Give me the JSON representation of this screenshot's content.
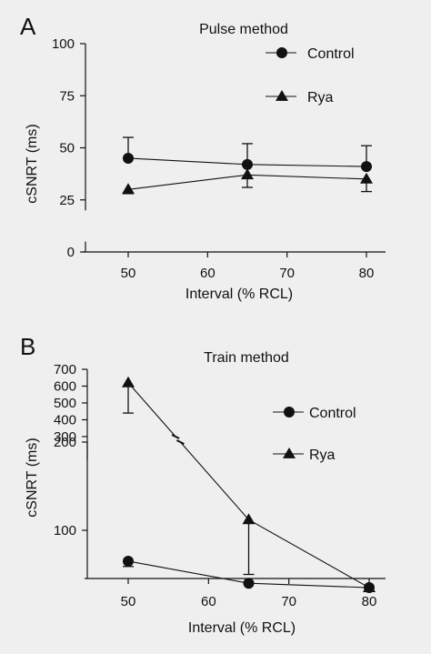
{
  "chart_data": [
    {
      "type": "line",
      "panel": "A",
      "title": "Pulse method",
      "xlabel": "Interval (% RCL)",
      "ylabel": "cSNRT (ms)",
      "x_ticks": [
        50,
        60,
        70,
        80
      ],
      "x_tick_labels": [
        "50",
        "60",
        "70",
        "80"
      ],
      "xlim": [
        45,
        85
      ],
      "y_ticks": [
        0,
        25,
        50,
        75,
        100
      ],
      "y_tick_labels": [
        "0",
        "25",
        "50",
        "75",
        "100"
      ],
      "ylim": [
        0,
        100
      ],
      "y_axis_break": [
        5,
        20
      ],
      "legend_position": "top-right",
      "series": [
        {
          "name": "Control",
          "marker": "circle",
          "x": [
            50,
            65,
            80
          ],
          "values": [
            45,
            42,
            41
          ],
          "error_up": [
            10,
            10,
            10
          ],
          "error_down": [
            0,
            0,
            0
          ]
        },
        {
          "name": "Rya",
          "marker": "triangle",
          "x": [
            50,
            65,
            80
          ],
          "values": [
            30,
            37,
            35
          ],
          "error_up": [
            0,
            0,
            0
          ],
          "error_down": [
            2,
            6,
            6
          ]
        }
      ]
    },
    {
      "type": "line",
      "panel": "B",
      "title": "Train method",
      "xlabel": "Interval (% RCL)",
      "ylabel": "cSNRT (ms)",
      "x_ticks": [
        50,
        60,
        70,
        80
      ],
      "x_tick_labels": [
        "50",
        "60",
        "70",
        "80"
      ],
      "xlim": [
        45,
        85
      ],
      "y_ticks": [
        100,
        200,
        300,
        400,
        500,
        600,
        700
      ],
      "y_tick_labels": [
        "100",
        "200",
        "300",
        "400",
        "500",
        "600",
        "700"
      ],
      "y_axis_break": [
        200,
        300
      ],
      "legend_position": "right",
      "series": [
        {
          "name": "Control",
          "marker": "circle",
          "x": [
            50,
            65,
            80
          ],
          "values": [
            65,
            40,
            35
          ],
          "error_up": [
            0,
            0,
            0
          ],
          "error_down": [
            6,
            0,
            0
          ]
        },
        {
          "name": "Rya",
          "marker": "triangle",
          "x": [
            50,
            65,
            80
          ],
          "values": [
            620,
            112,
            35
          ],
          "error_up": [
            0,
            0,
            0
          ],
          "error_down": [
            180,
            62,
            0
          ]
        }
      ]
    }
  ]
}
